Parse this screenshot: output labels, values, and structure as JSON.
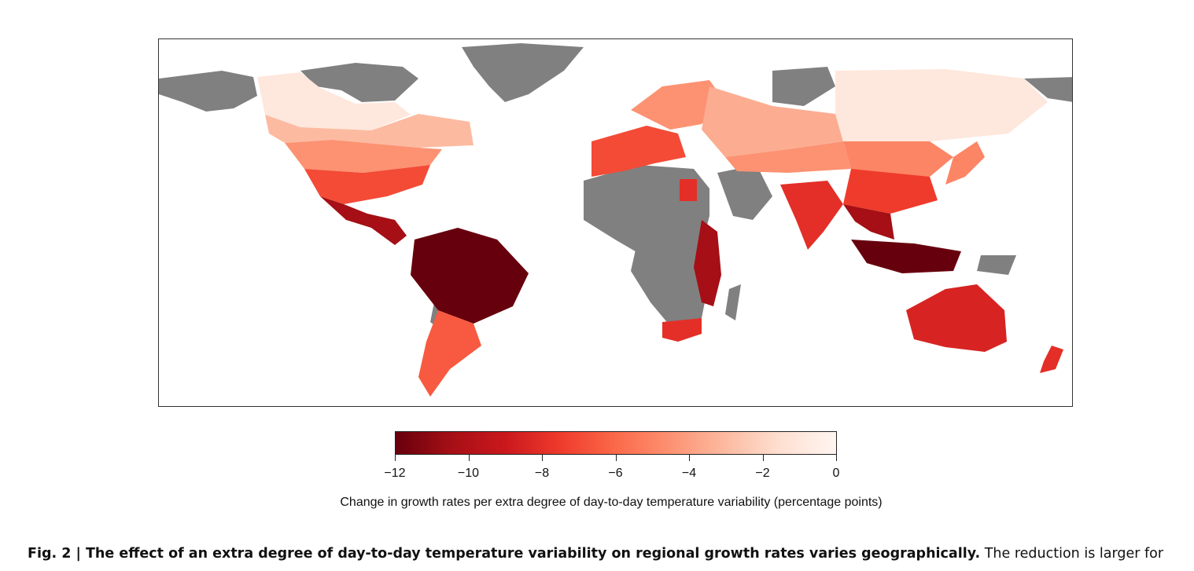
{
  "figure": {
    "colorbar": {
      "min": -12,
      "max": 0,
      "ticks": [
        "−12",
        "−10",
        "−8",
        "−6",
        "−4",
        "−2",
        "0"
      ],
      "colors": [
        "#67000d",
        "#a50f15",
        "#cb181d",
        "#ef3b2c",
        "#fb6a4a",
        "#fc9272",
        "#fcbba1",
        "#fee0d2",
        "#fff5f0"
      ],
      "title": "Change in growth rates per extra degree of day-to-day temperature variability (percentage points)"
    },
    "map": {
      "no_data_color": "#808080",
      "region_values": {
        "canada-north": -1.0,
        "canada-south": -3.0,
        "usa-north": -4.5,
        "usa-south": -7.0,
        "mexico-central-america": -10.5,
        "south-america-north": -12.0,
        "south-america-south": -6.5,
        "europe-west": -7.0,
        "europe-north": -4.5,
        "russia-west": -3.5,
        "siberia": -1.0,
        "central-asia": -4.5,
        "china-north": -5.0,
        "china-south": -7.5,
        "india": -8.0,
        "southeast-asia": -10.5,
        "indonesia": -12.0,
        "japan": -5.0,
        "egypt": -8.0,
        "east-africa": -10.5,
        "south-africa": -8.0,
        "australia": -8.5,
        "new-zealand": -8.0
      }
    },
    "caption": {
      "label": "Fig. 2 | The effect of an extra degree of day-to-day temperature variability on regional growth rates varies geographically.",
      "text": " The reduction is larger for"
    }
  }
}
